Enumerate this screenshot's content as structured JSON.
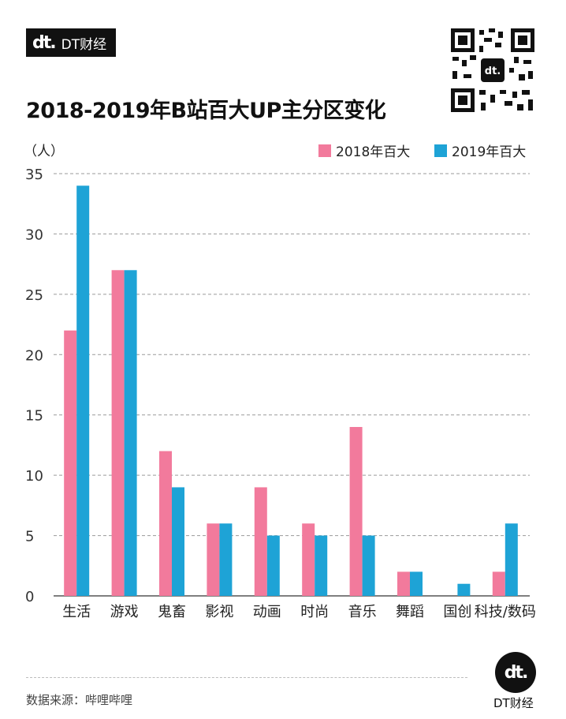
{
  "brand": {
    "logo_mark": "dt.",
    "name": "DT财经"
  },
  "colors": {
    "series_2018": "#f27a9c",
    "series_2019": "#1ea3d6",
    "grid": "#9a9a9a",
    "axis": "#333333"
  },
  "chart_data": {
    "type": "bar",
    "title": "2018-2019年B站百大UP主分区变化",
    "ylabel": "（人）",
    "xlabel": "",
    "categories": [
      "生活",
      "游戏",
      "鬼畜",
      "影视",
      "动画",
      "时尚",
      "音乐",
      "舞蹈",
      "国创",
      "科技/数码"
    ],
    "series": [
      {
        "name": "2018年百大",
        "values": [
          22,
          27,
          12,
          6,
          9,
          6,
          14,
          2,
          0,
          2
        ]
      },
      {
        "name": "2019年百大",
        "values": [
          34,
          27,
          9,
          6,
          5,
          5,
          5,
          2,
          1,
          6
        ]
      }
    ],
    "ylim": [
      0,
      35
    ],
    "yticks": [
      0,
      5,
      10,
      15,
      20,
      25,
      30,
      35
    ],
    "grid": true,
    "legend_position": "top-right"
  },
  "footer": {
    "source": "数据来源：哔哩哔哩",
    "logo_mark": "dt.",
    "name": "DT财经"
  }
}
